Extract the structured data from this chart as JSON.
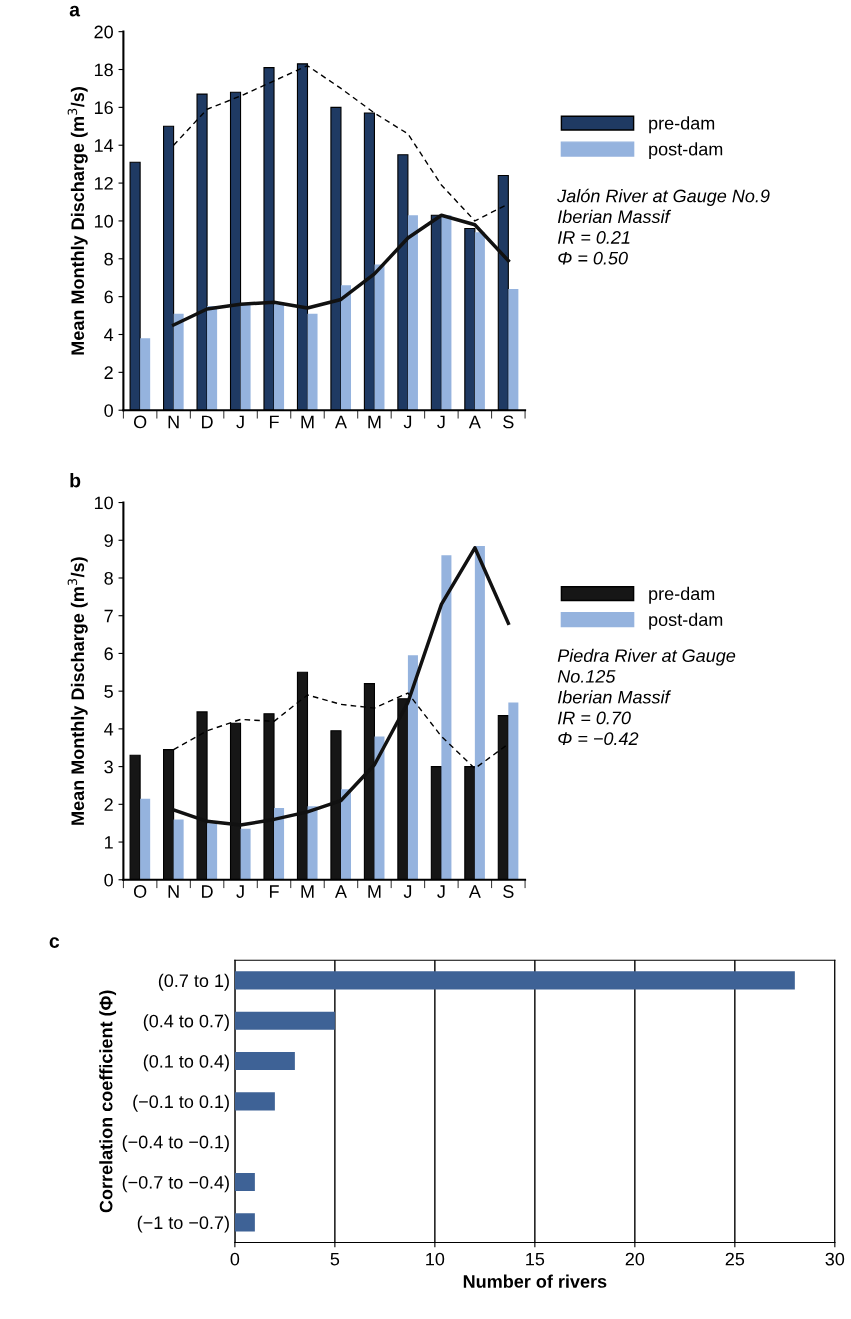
{
  "chart_data": [
    {
      "type": "bar",
      "ylabel": "Mean Monthly Discharge (m$^{3}$/s)",
      "categories": [
        "O",
        "N",
        "D",
        "J",
        "F",
        "M",
        "A",
        "M",
        "J",
        "J",
        "A",
        "S"
      ],
      "ylim": [
        0,
        20
      ],
      "yticks": [
        0,
        2,
        4,
        6,
        8,
        10,
        12,
        14,
        16,
        18,
        20
      ],
      "legend": "right",
      "grid": false,
      "series": [
        {
          "name": "pre-dam",
          "color": "#1f3a63",
          "values": [
            13.1,
            15.0,
            16.7,
            16.8,
            18.1,
            18.3,
            16.0,
            15.7,
            13.5,
            10.3,
            9.6,
            12.4
          ]
        },
        {
          "name": "post-dam",
          "color": "#95b3de",
          "values": [
            3.8,
            5.1,
            5.5,
            5.6,
            5.6,
            5.1,
            6.6,
            7.7,
            10.3,
            10.3,
            9.4,
            6.4
          ]
        },
        {
          "type": "line",
          "line_style": "dashed",
          "color": "#000000",
          "values": [
            null,
            14.0,
            15.9,
            16.6,
            17.4,
            18.2,
            17.0,
            15.7,
            14.6,
            11.9,
            10.0,
            10.9
          ]
        },
        {
          "type": "line",
          "line_style": "solid",
          "color": "#111111",
          "values": [
            null,
            4.5,
            5.35,
            5.6,
            5.7,
            5.4,
            5.85,
            7.2,
            9.1,
            10.3,
            9.8,
            7.9
          ]
        }
      ],
      "annotations": [
        "a",
        "Jalón River at Gauge No.9\nIberian Massif\nIR = 0.21\nΦ = 0.50"
      ]
    },
    {
      "type": "bar",
      "ylabel": "Mean Monthly Discharge (m$^{3}$/s)",
      "categories": [
        "O",
        "N",
        "D",
        "J",
        "F",
        "M",
        "A",
        "M",
        "J",
        "J",
        "A",
        "S"
      ],
      "ylim": [
        0,
        10
      ],
      "yticks": [
        0,
        1,
        2,
        3,
        4,
        5,
        6,
        7,
        8,
        9,
        10
      ],
      "legend": "right",
      "grid": false,
      "series": [
        {
          "name": "pre-dam",
          "color": "#161616",
          "values": [
            3.3,
            3.45,
            4.45,
            4.15,
            4.4,
            5.5,
            3.95,
            5.2,
            4.8,
            3.0,
            3.0,
            4.35
          ]
        },
        {
          "name": "post-dam",
          "color": "#95b3de",
          "values": [
            2.15,
            1.6,
            1.5,
            1.35,
            1.9,
            1.95,
            2.4,
            3.8,
            5.95,
            8.6,
            8.85,
            4.7
          ]
        },
        {
          "type": "line",
          "line_style": "dashed",
          "color": "#000000",
          "values": [
            null,
            3.45,
            3.95,
            4.25,
            4.2,
            4.9,
            4.65,
            4.55,
            4.95,
            3.8,
            2.95,
            3.6
          ]
        },
        {
          "type": "line",
          "line_style": "solid",
          "color": "#111111",
          "values": [
            null,
            1.85,
            1.55,
            1.45,
            1.6,
            1.8,
            2.1,
            3.05,
            4.7,
            7.3,
            8.8,
            6.8
          ]
        }
      ],
      "annotations": [
        "b",
        "Piedra River at Gauge\nNo.125\nIberian Massif\nIR = 0.70\nΦ = −0.42"
      ]
    },
    {
      "type": "bar",
      "orientation": "horizontal",
      "xlabel": "Number of rivers",
      "ylabel": "Correlation coefficient (Φ)",
      "categories": [
        "(0.7 to 1)",
        "(0.4 to 0.7)",
        "(0.1 to 0.4)",
        "(−0.1 to 0.1)",
        "(−0.4 to −0.1)",
        "(−0.7 to −0.4)",
        "(−1 to −0.7)"
      ],
      "values": [
        28,
        5,
        3,
        2,
        0,
        1,
        1
      ],
      "color": "#3e6296",
      "xlim": [
        0,
        30
      ],
      "xticks": [
        0,
        5,
        10,
        15,
        20,
        25,
        30
      ],
      "grid": "x",
      "annotations": [
        "c"
      ]
    }
  ]
}
